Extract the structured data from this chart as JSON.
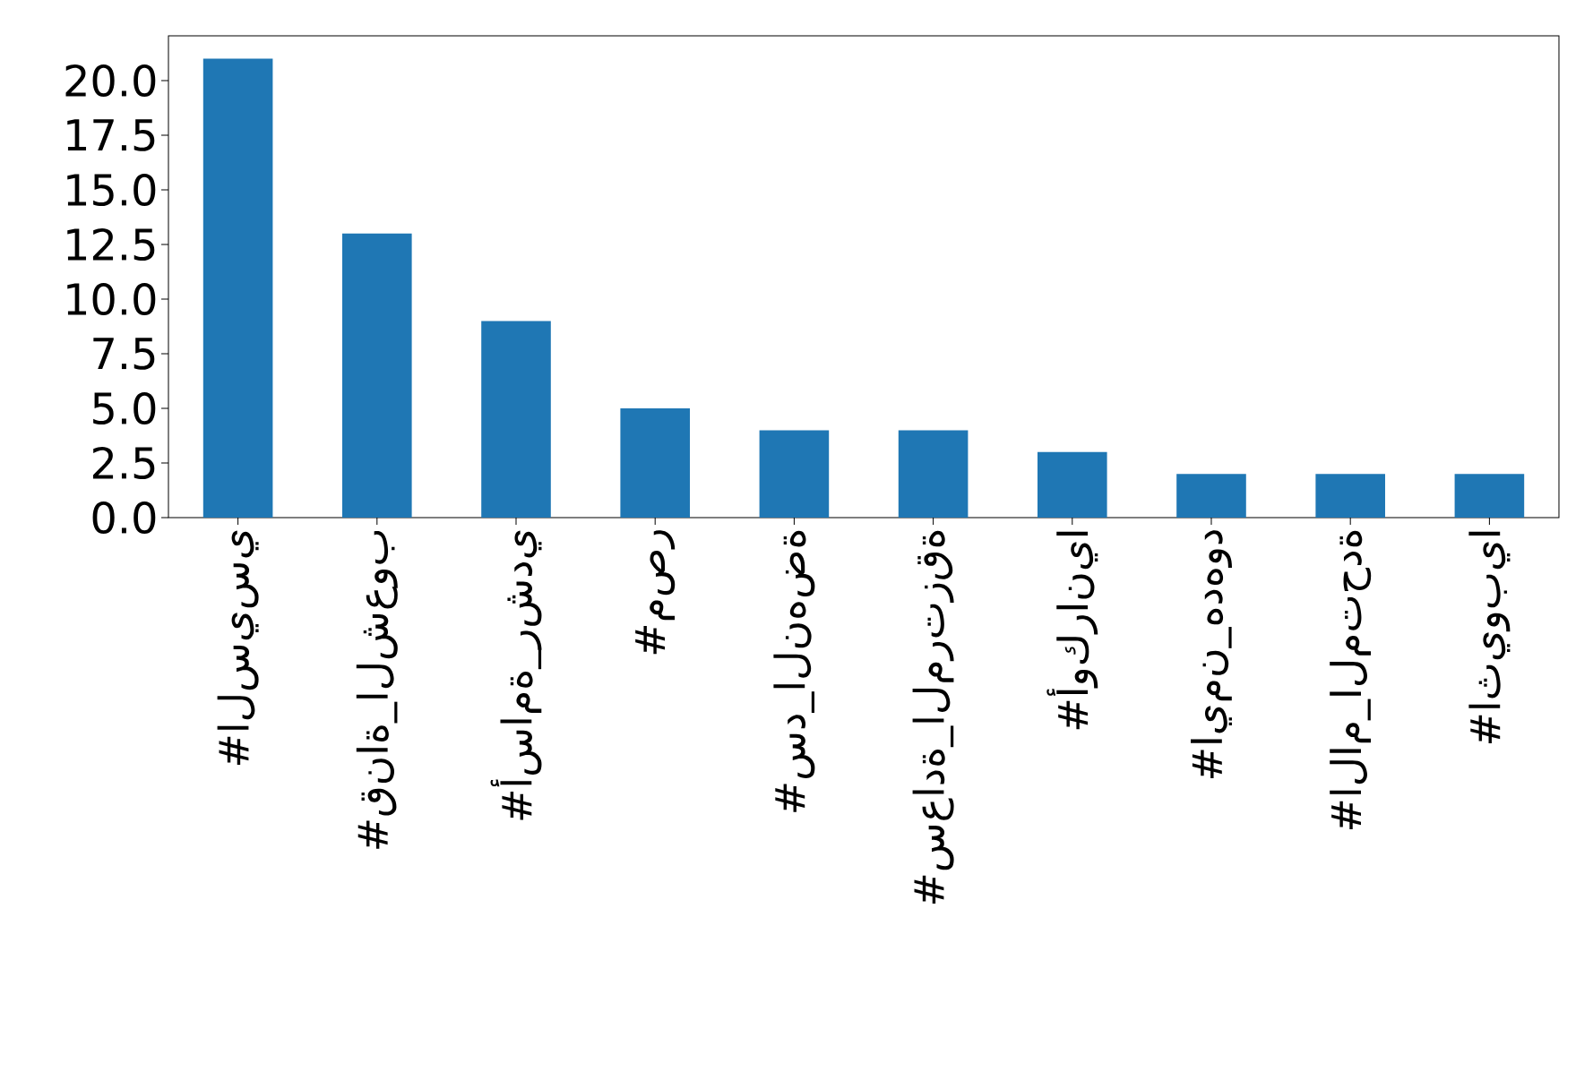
{
  "chart_data": {
    "type": "bar",
    "categories": [
      "#السيسي",
      "#قناة_الشعوب",
      "#أسامة_رشدي",
      "#مصر",
      "#سد_النهضة",
      "#سعادة_المرتزقة",
      "#أوكرانيا",
      "#ايمن_هدهود",
      "#الام_المتحدة",
      "#اثيوبيا"
    ],
    "values": [
      21,
      13,
      9,
      5,
      4,
      4,
      3,
      2,
      2,
      2
    ],
    "color": "#1f77b4",
    "ylim": [
      0,
      22.05
    ],
    "yticks": [
      {
        "value": 0,
        "label": "0.0"
      },
      {
        "value": 2.5,
        "label": "2.5"
      },
      {
        "value": 5,
        "label": "5.0"
      },
      {
        "value": 7.5,
        "label": "7.5"
      },
      {
        "value": 10,
        "label": "10.0"
      },
      {
        "value": 12.5,
        "label": "12.5"
      },
      {
        "value": 15,
        "label": "15.0"
      },
      {
        "value": 17.5,
        "label": "17.5"
      },
      {
        "value": 20,
        "label": "20.0"
      }
    ],
    "grid": false
  }
}
